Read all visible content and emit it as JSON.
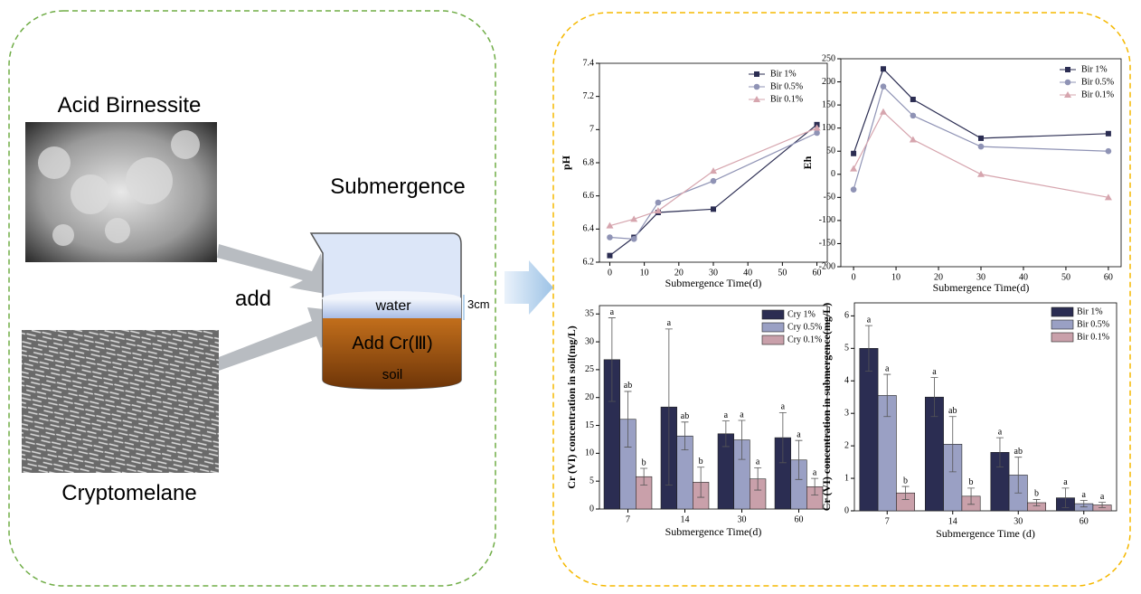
{
  "diagram": {
    "material_top": "Acid Birnessite",
    "material_bottom": "Cryptomelane",
    "process": "Submergence",
    "action": "add",
    "water_layer": "water",
    "depth": "3cm",
    "addition": "Add Cr(Ⅲ)",
    "soil_layer": "soil"
  },
  "chart_data": [
    {
      "type": "line",
      "x_label": "Submergence Time(d)",
      "y_label": "pH",
      "x": [
        0,
        7,
        14,
        30,
        60
      ],
      "xlim": [
        -3,
        63
      ],
      "xticks": [
        0,
        10,
        20,
        30,
        40,
        50,
        60
      ],
      "ylim": [
        6.2,
        7.4
      ],
      "yticks": [
        6.2,
        6.4,
        6.6,
        6.8,
        7.0,
        7.2,
        7.4
      ],
      "legend": "upper left",
      "grid": false,
      "series": [
        {
          "name": "Bir 1%",
          "color": "#2b2d52",
          "marker": "square",
          "values": [
            6.24,
            6.35,
            6.5,
            6.52,
            7.03
          ]
        },
        {
          "name": "Bir 0.5%",
          "color": "#8f93b5",
          "marker": "circle",
          "values": [
            6.35,
            6.34,
            6.56,
            6.69,
            6.98
          ]
        },
        {
          "name": "Bir 0.1%",
          "color": "#d6a5ae",
          "marker": "triangle",
          "values": [
            6.42,
            6.46,
            6.51,
            6.75,
            7.01
          ]
        }
      ]
    },
    {
      "type": "line",
      "x_label": "Submergence Time(d)",
      "y_label": "Eh",
      "x": [
        0,
        7,
        14,
        30,
        60
      ],
      "xlim": [
        -3,
        63
      ],
      "xticks": [
        0,
        10,
        20,
        30,
        40,
        50,
        60
      ],
      "ylim": [
        -200,
        250
      ],
      "yticks": [
        -200,
        -150,
        -100,
        -50,
        0,
        50,
        100,
        150,
        200,
        250
      ],
      "legend": "upper right",
      "grid": false,
      "series": [
        {
          "name": "Bir 1%",
          "color": "#2b2d52",
          "marker": "square",
          "values": [
            45,
            228,
            162,
            78,
            88
          ]
        },
        {
          "name": "Bir 0.5%",
          "color": "#8f93b5",
          "marker": "circle",
          "values": [
            -33,
            190,
            127,
            60,
            50
          ]
        },
        {
          "name": "Bir 0.1%",
          "color": "#d6a5ae",
          "marker": "triangle",
          "values": [
            12,
            135,
            75,
            0,
            -50
          ]
        }
      ]
    },
    {
      "type": "bar",
      "x_label": "Submergence Time(d)",
      "y_label": "Cr (VI) concentration in soil(mg/L)",
      "categories": [
        "7",
        "14",
        "30",
        "60"
      ],
      "ylim": [
        0,
        36.5
      ],
      "yticks": [
        0,
        5,
        10,
        15,
        20,
        25,
        30,
        35
      ],
      "legend": "upper right",
      "grid": false,
      "series": [
        {
          "name": "Cry 1%",
          "color": "#2b2d52",
          "values": [
            26.8,
            18.3,
            13.5,
            12.8
          ],
          "errors": [
            7.5,
            14,
            2.3,
            4.5
          ],
          "letters": [
            "a",
            "a",
            "a",
            "a"
          ]
        },
        {
          "name": "Cry 0.5%",
          "color": "#9aa0c4",
          "values": [
            16.1,
            13.1,
            12.4,
            8.8
          ],
          "errors": [
            5,
            2.5,
            3.5,
            3.5
          ],
          "letters": [
            "ab",
            "ab",
            "a",
            "a"
          ]
        },
        {
          "name": "Cry 0.1%",
          "color": "#c9a0aa",
          "values": [
            5.8,
            4.8,
            5.4,
            4.0
          ],
          "errors": [
            1.5,
            2.7,
            2,
            1.5
          ],
          "letters": [
            "b",
            "b",
            "a",
            "a"
          ]
        }
      ]
    },
    {
      "type": "bar",
      "x_label": "Submergence Time (d)",
      "y_label": "Cr (VI) concentration in submergence(mg/L)",
      "categories": [
        "7",
        "14",
        "30",
        "60"
      ],
      "ylim": [
        0,
        6.4
      ],
      "yticks": [
        0,
        1,
        2,
        3,
        4,
        5,
        6
      ],
      "legend": "upper right",
      "grid": false,
      "series": [
        {
          "name": "Bir 1%",
          "color": "#2b2d52",
          "values": [
            5.0,
            3.5,
            1.8,
            0.4
          ],
          "errors": [
            0.7,
            0.6,
            0.45,
            0.3
          ],
          "letters": [
            "a",
            "a",
            "a",
            "a"
          ]
        },
        {
          "name": "Bir 0.5%",
          "color": "#9aa0c4",
          "values": [
            3.55,
            2.05,
            1.1,
            0.22
          ],
          "errors": [
            0.65,
            0.85,
            0.55,
            0.1
          ],
          "letters": [
            "a",
            "ab",
            "ab",
            "a"
          ]
        },
        {
          "name": "Bir 0.1%",
          "color": "#c9a0aa",
          "values": [
            0.55,
            0.45,
            0.25,
            0.18
          ],
          "errors": [
            0.2,
            0.25,
            0.1,
            0.08
          ],
          "letters": [
            "b",
            "b",
            "b",
            "a"
          ]
        }
      ]
    }
  ]
}
